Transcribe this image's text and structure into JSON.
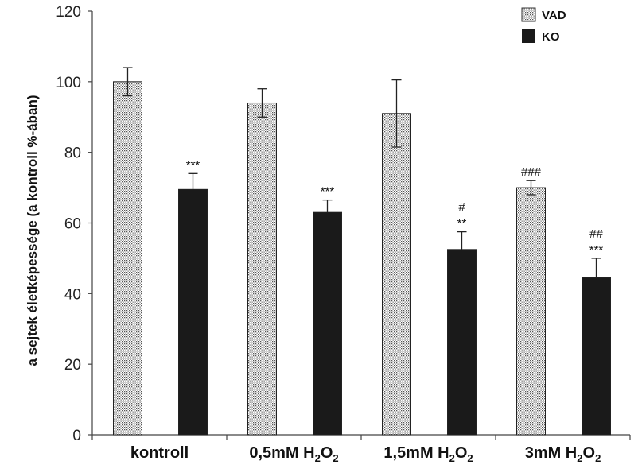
{
  "chart_data": {
    "type": "bar",
    "ylabel": "a sejtek életképessége (a kontroll %-ában)",
    "ylim": [
      0,
      120
    ],
    "yticks": [
      "0",
      "20",
      "40",
      "60",
      "80",
      "100",
      "120"
    ],
    "categories": [
      {
        "label": "kontroll",
        "sub": ""
      },
      {
        "label": "0,5mM H",
        "sub": "2",
        "tail": "O",
        "sub2": "2"
      },
      {
        "label": "1,5mM H",
        "sub": "2",
        "tail": "O",
        "sub2": "2"
      },
      {
        "label": "3mM H",
        "sub": "2",
        "tail": "O",
        "sub2": "2"
      }
    ],
    "series": [
      {
        "name": "VAD",
        "pattern": "dotted",
        "values": [
          100,
          94,
          91,
          70
        ],
        "errors": [
          4,
          4,
          9.5,
          2
        ],
        "annotations": [
          "",
          "",
          "",
          "###"
        ]
      },
      {
        "name": "KO",
        "pattern": "solid",
        "values": [
          69.5,
          63,
          52.5,
          44.5
        ],
        "errors": [
          4.5,
          3.5,
          5,
          5.5
        ],
        "annotations": [
          "***",
          "***",
          "**",
          "***"
        ],
        "annotations2": [
          "",
          "",
          "#",
          "##"
        ]
      }
    ],
    "legend": {
      "position": "top-right"
    },
    "colors": {
      "VAD_fill": "#ffffff",
      "VAD_dot": "#444444",
      "KO": "#1a1a1a",
      "axis": "#444444"
    },
    "grid": false
  }
}
